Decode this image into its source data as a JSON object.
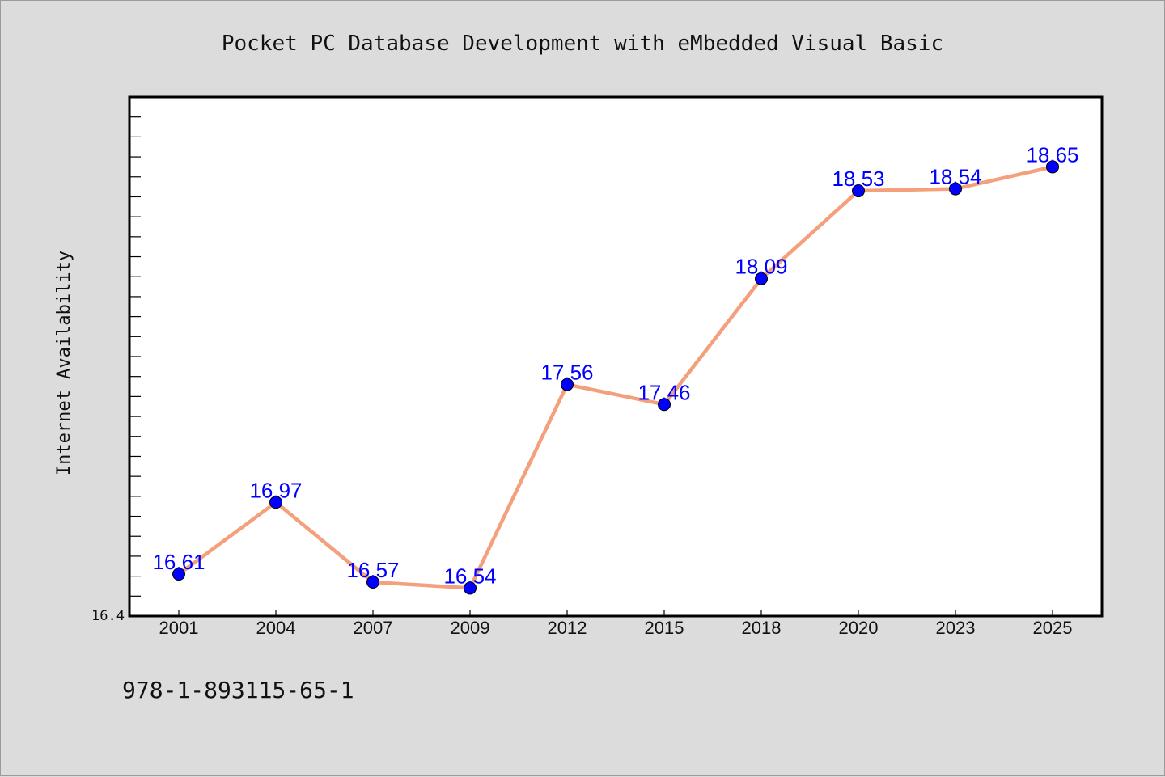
{
  "chart_data": {
    "type": "line",
    "title": "Pocket PC Database Development with eMbedded Visual Basic",
    "xlabel": "",
    "ylabel": "Internet Availability",
    "x": [
      "2001",
      "2004",
      "2007",
      "2009",
      "2012",
      "2015",
      "2018",
      "2020",
      "2023",
      "2025"
    ],
    "series": [
      {
        "values": [
          16.61,
          16.97,
          16.57,
          16.54,
          17.56,
          17.46,
          18.09,
          18.53,
          18.54,
          18.65
        ],
        "labels": [
          "16.61",
          "16.97",
          "16.57",
          "16.54",
          "17.56",
          "17.46",
          "18.09",
          "18.53",
          "18.54",
          "18.65"
        ]
      }
    ],
    "ylim": [
      16.4,
      19.0
    ],
    "ytick_labels": [
      "16.4"
    ],
    "grid": false,
    "line_color": "#f4a07c",
    "marker_color": "#0000ff",
    "label_color": "#0000ff"
  },
  "footer": {
    "text": "978-1-893115-65-1"
  }
}
